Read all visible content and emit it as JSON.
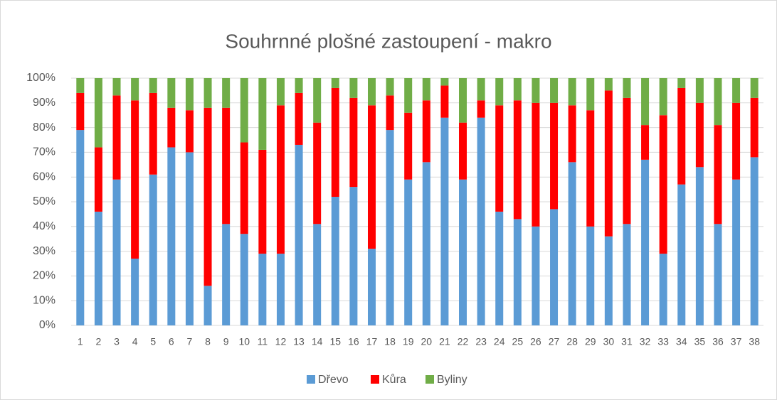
{
  "chart_data": {
    "type": "stacked_bar_100",
    "title": "Souhrnné plošné zastoupení - makro",
    "categories": [
      "1",
      "2",
      "3",
      "4",
      "5",
      "6",
      "7",
      "8",
      "9",
      "10",
      "11",
      "12",
      "13",
      "14",
      "15",
      "16",
      "17",
      "18",
      "19",
      "20",
      "21",
      "22",
      "23",
      "24",
      "25",
      "26",
      "27",
      "28",
      "29",
      "30",
      "31",
      "32",
      "33",
      "34",
      "35",
      "36",
      "37",
      "38"
    ],
    "series": [
      {
        "name": "Dřevo",
        "color": "#5b9bd5",
        "values": [
          79,
          46,
          59,
          27,
          61,
          72,
          70,
          16,
          41,
          37,
          29,
          29,
          73,
          41,
          52,
          56,
          31,
          79,
          59,
          66,
          84,
          59,
          84,
          46,
          43,
          40,
          47,
          66,
          40,
          36,
          41,
          67,
          29,
          57,
          64,
          41,
          59,
          68
        ]
      },
      {
        "name": "Kůra",
        "color": "#ff0000",
        "values": [
          15,
          26,
          34,
          64,
          33,
          16,
          17,
          72,
          47,
          37,
          42,
          60,
          21,
          41,
          44,
          36,
          58,
          14,
          27,
          25,
          13,
          23,
          7,
          43,
          48,
          50,
          43,
          23,
          47,
          59,
          51,
          14,
          56,
          39,
          26,
          40,
          31,
          24
        ]
      },
      {
        "name": "Byliny",
        "color": "#70ad47",
        "values": [
          6,
          28,
          7,
          9,
          6,
          12,
          13,
          12,
          12,
          26,
          29,
          11,
          6,
          18,
          4,
          8,
          11,
          7,
          14,
          9,
          3,
          18,
          9,
          11,
          9,
          10,
          10,
          11,
          13,
          5,
          8,
          19,
          15,
          4,
          10,
          19,
          10,
          8
        ]
      }
    ],
    "ylim": [
      0,
      100
    ],
    "yticks": [
      {
        "value": 0,
        "label": "0%"
      },
      {
        "value": 10,
        "label": "10%"
      },
      {
        "value": 20,
        "label": "20%"
      },
      {
        "value": 30,
        "label": "30%"
      },
      {
        "value": 40,
        "label": "40%"
      },
      {
        "value": 50,
        "label": "50%"
      },
      {
        "value": 60,
        "label": "60%"
      },
      {
        "value": 70,
        "label": "70%"
      },
      {
        "value": 80,
        "label": "80%"
      },
      {
        "value": 90,
        "label": "90%"
      },
      {
        "value": 100,
        "label": "100%"
      }
    ],
    "grid": true,
    "legend": "bottom"
  }
}
